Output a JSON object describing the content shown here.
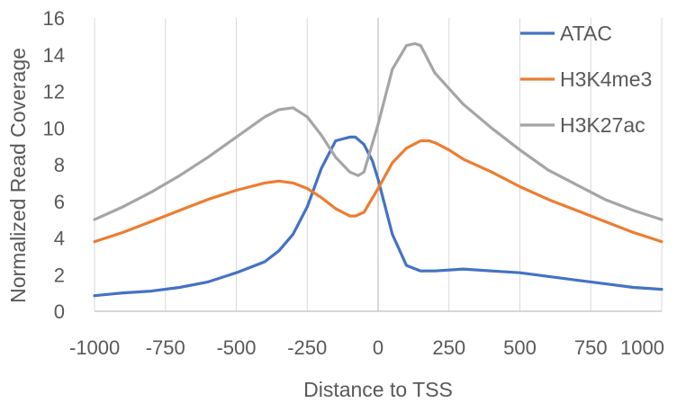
{
  "chart_data": {
    "type": "line",
    "xlabel": "Distance to TSS",
    "ylabel": "Normalized Read Coverage",
    "xlim": [
      -1000,
      1000
    ],
    "ylim": [
      0,
      16
    ],
    "x_ticks": [
      -1000,
      -750,
      -500,
      -250,
      0,
      250,
      500,
      750,
      1000
    ],
    "y_ticks": [
      0,
      2,
      4,
      6,
      8,
      10,
      12,
      14,
      16
    ],
    "x_tick_labels": [
      "-1000",
      "-750",
      "-500",
      "-250",
      "0",
      "250",
      "500",
      "750",
      "1000"
    ],
    "y_tick_labels": [
      "0",
      "2",
      "4",
      "6",
      "8",
      "10",
      "12",
      "14",
      "16"
    ],
    "grid": "vertical",
    "legend_position": "top-right",
    "series": [
      {
        "name": "ATAC",
        "color": "#4472C4",
        "x": [
          -1000,
          -900,
          -800,
          -700,
          -600,
          -500,
          -400,
          -350,
          -300,
          -250,
          -200,
          -150,
          -100,
          -80,
          -50,
          -20,
          0,
          50,
          100,
          150,
          200,
          300,
          400,
          500,
          600,
          700,
          800,
          900,
          1000
        ],
        "y": [
          0.85,
          1.0,
          1.1,
          1.3,
          1.6,
          2.1,
          2.7,
          3.3,
          4.2,
          5.7,
          7.8,
          9.3,
          9.5,
          9.5,
          9.1,
          8.2,
          7.2,
          4.2,
          2.5,
          2.2,
          2.2,
          2.3,
          2.2,
          2.1,
          1.9,
          1.7,
          1.5,
          1.3,
          1.2
        ]
      },
      {
        "name": "H3K4me3",
        "color": "#ED7D31",
        "x": [
          -1000,
          -900,
          -800,
          -700,
          -600,
          -500,
          -400,
          -350,
          -300,
          -250,
          -200,
          -150,
          -100,
          -80,
          -50,
          0,
          50,
          100,
          150,
          180,
          200,
          250,
          300,
          400,
          500,
          600,
          700,
          800,
          900,
          1000
        ],
        "y": [
          3.8,
          4.3,
          4.9,
          5.5,
          6.1,
          6.6,
          7.0,
          7.1,
          7.0,
          6.7,
          6.2,
          5.6,
          5.2,
          5.2,
          5.4,
          6.7,
          8.1,
          8.9,
          9.3,
          9.3,
          9.2,
          8.8,
          8.3,
          7.6,
          6.8,
          6.1,
          5.5,
          4.9,
          4.3,
          3.8
        ]
      },
      {
        "name": "H3K27ac",
        "color": "#A5A5A5",
        "x": [
          -1000,
          -900,
          -800,
          -700,
          -600,
          -500,
          -400,
          -350,
          -300,
          -250,
          -200,
          -150,
          -100,
          -70,
          -50,
          0,
          50,
          100,
          130,
          150,
          200,
          300,
          400,
          500,
          600,
          700,
          800,
          900,
          1000
        ],
        "y": [
          5.0,
          5.7,
          6.5,
          7.4,
          8.4,
          9.5,
          10.6,
          11.0,
          11.1,
          10.6,
          9.6,
          8.4,
          7.6,
          7.4,
          7.6,
          10.2,
          13.2,
          14.5,
          14.6,
          14.5,
          13.0,
          11.3,
          10.0,
          8.8,
          7.7,
          6.9,
          6.1,
          5.5,
          5.0
        ]
      }
    ]
  }
}
